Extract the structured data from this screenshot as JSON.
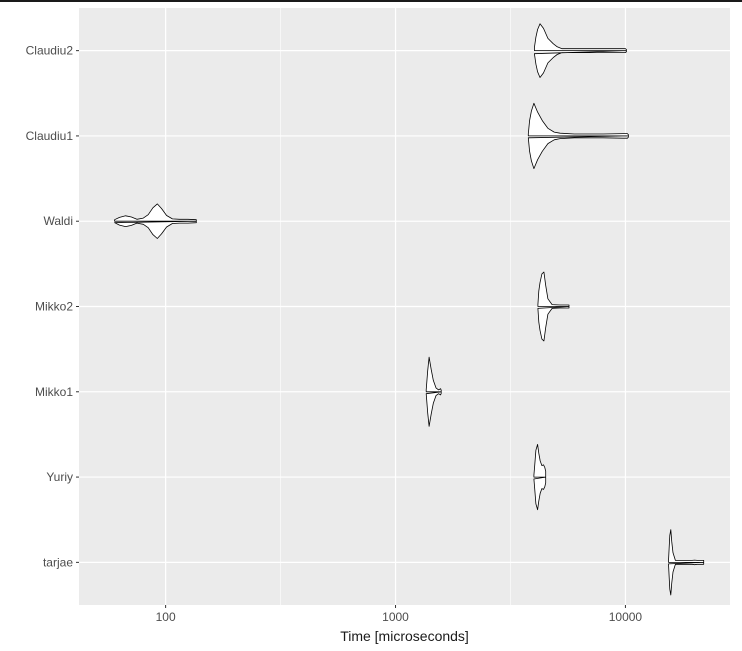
{
  "chart_data": {
    "type": "violin",
    "title": "",
    "xlabel": "Time [microseconds]",
    "ylabel": "",
    "x_scale": "log10",
    "xlim": [
      42,
      28500
    ],
    "x_ticks": [
      100,
      1000,
      10000
    ],
    "x_tick_labels": [
      "100",
      "1000",
      "10000"
    ],
    "grid": true,
    "legend": "none",
    "categories": [
      "Claudiu2",
      "Claudiu1",
      "Waldi",
      "Mikko2",
      "Mikko1",
      "Yuriy",
      "tarjae"
    ],
    "series": [
      {
        "category": "Claudiu2",
        "min": 4020,
        "max": 10100,
        "profile": [
          [
            4020,
            0.08
          ],
          [
            4080,
            0.35
          ],
          [
            4150,
            0.55
          ],
          [
            4250,
            0.7
          ],
          [
            4400,
            0.58
          ],
          [
            4600,
            0.32
          ],
          [
            4850,
            0.18
          ],
          [
            5050,
            0.1
          ],
          [
            5300,
            0.05
          ],
          [
            6000,
            0.05
          ],
          [
            7500,
            0.05
          ],
          [
            9000,
            0.05
          ],
          [
            10000,
            0.05
          ],
          [
            10100,
            0.03
          ]
        ]
      },
      {
        "category": "Claudiu1",
        "min": 3780,
        "max": 10300,
        "profile": [
          [
            3780,
            0.05
          ],
          [
            3830,
            0.4
          ],
          [
            3900,
            0.65
          ],
          [
            4000,
            0.85
          ],
          [
            4150,
            0.62
          ],
          [
            4350,
            0.4
          ],
          [
            4600,
            0.2
          ],
          [
            4900,
            0.1
          ],
          [
            5200,
            0.07
          ],
          [
            6000,
            0.05
          ],
          [
            8000,
            0.05
          ],
          [
            9800,
            0.06
          ],
          [
            10200,
            0.06
          ],
          [
            10300,
            0.03
          ]
        ]
      },
      {
        "category": "Waldi",
        "min": 60,
        "max": 136,
        "profile": [
          [
            60,
            0.04
          ],
          [
            63,
            0.1
          ],
          [
            67,
            0.14
          ],
          [
            71,
            0.11
          ],
          [
            75,
            0.05
          ],
          [
            80,
            0.08
          ],
          [
            84,
            0.17
          ],
          [
            88,
            0.35
          ],
          [
            92,
            0.45
          ],
          [
            96,
            0.33
          ],
          [
            101,
            0.15
          ],
          [
            107,
            0.06
          ],
          [
            115,
            0.05
          ],
          [
            125,
            0.05
          ],
          [
            136,
            0.04
          ]
        ]
      },
      {
        "category": "Mikko2",
        "min": 4160,
        "max": 5680,
        "profile": [
          [
            4160,
            0.05
          ],
          [
            4200,
            0.4
          ],
          [
            4250,
            0.62
          ],
          [
            4330,
            0.85
          ],
          [
            4420,
            0.9
          ],
          [
            4500,
            0.55
          ],
          [
            4600,
            0.2
          ],
          [
            4800,
            0.05
          ],
          [
            5200,
            0.04
          ],
          [
            5600,
            0.04
          ],
          [
            5680,
            0.04
          ]
        ]
      },
      {
        "category": "Mikko1",
        "min": 1360,
        "max": 1580,
        "profile": [
          [
            1360,
            0.05
          ],
          [
            1380,
            0.55
          ],
          [
            1400,
            0.9
          ],
          [
            1430,
            0.58
          ],
          [
            1460,
            0.3
          ],
          [
            1500,
            0.1
          ],
          [
            1540,
            0.05
          ],
          [
            1570,
            0.08
          ],
          [
            1580,
            0.04
          ]
        ]
      },
      {
        "category": "Yuriy",
        "min": 4000,
        "max": 4500,
        "profile": [
          [
            4000,
            0.05
          ],
          [
            4030,
            0.3
          ],
          [
            4080,
            0.7
          ],
          [
            4150,
            0.85
          ],
          [
            4200,
            0.62
          ],
          [
            4260,
            0.42
          ],
          [
            4330,
            0.3
          ],
          [
            4400,
            0.32
          ],
          [
            4460,
            0.25
          ],
          [
            4500,
            0.15
          ]
        ]
      },
      {
        "category": "tarjae",
        "min": 15400,
        "max": 21900,
        "profile": [
          [
            15400,
            0.04
          ],
          [
            15500,
            0.4
          ],
          [
            15600,
            0.7
          ],
          [
            15750,
            0.85
          ],
          [
            15900,
            0.55
          ],
          [
            16100,
            0.25
          ],
          [
            16500,
            0.05
          ],
          [
            18000,
            0.05
          ],
          [
            19500,
            0.05
          ],
          [
            20000,
            0.06
          ],
          [
            20500,
            0.05
          ],
          [
            21500,
            0.05
          ],
          [
            21900,
            0.05
          ]
        ]
      }
    ]
  }
}
